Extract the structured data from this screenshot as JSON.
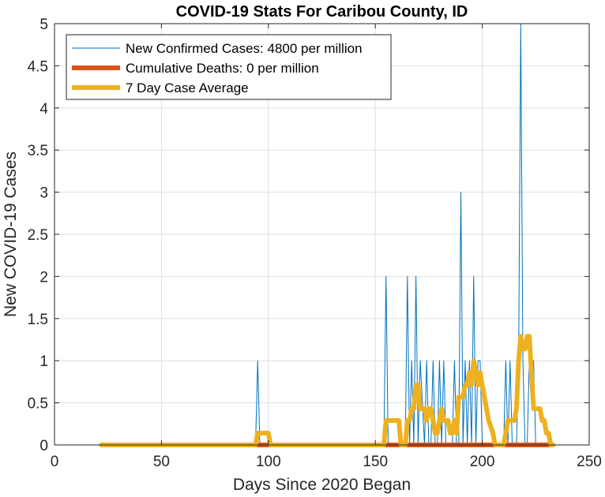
{
  "chart_data": {
    "type": "line",
    "title": "COVID-19 Stats For Caribou County, ID",
    "xlabel": "Days Since 2020 Began",
    "ylabel": "New COVID-19 Cases",
    "xlim": [
      0,
      250
    ],
    "ylim": [
      0,
      5
    ],
    "xticks": [
      0,
      50,
      100,
      150,
      200,
      250
    ],
    "xtick_labels": [
      "0",
      "50",
      "100",
      "150",
      "200",
      "250"
    ],
    "yticks": [
      0,
      0.5,
      1,
      1.5,
      2,
      2.5,
      3,
      3.5,
      4,
      4.5,
      5
    ],
    "ytick_labels": [
      "0",
      "0.5",
      "1",
      "1.5",
      "2",
      "2.5",
      "3",
      "3.5",
      "4",
      "4.5",
      "5"
    ],
    "grid": true,
    "legend_position": "top-left",
    "series": [
      {
        "name": "New Confirmed Cases: 4800 per million",
        "color": "#0072BD",
        "line": "thin",
        "x": [
          22,
          94,
          95,
          96,
          154,
          155,
          156,
          164,
          165,
          166,
          167,
          168,
          169,
          170,
          171,
          173,
          174,
          175,
          176,
          177,
          178,
          179,
          180,
          181,
          182,
          183,
          184,
          186,
          187,
          188,
          189,
          190,
          191,
          192,
          193,
          194,
          195,
          196,
          197,
          198,
          199,
          200,
          201,
          210,
          211,
          212,
          213,
          214,
          216,
          217,
          218,
          219,
          220,
          221,
          222,
          223,
          224,
          225,
          226,
          233
        ],
        "y": [
          0,
          0,
          1,
          0,
          0,
          2,
          0,
          0,
          2,
          0,
          1,
          0,
          2,
          0,
          1,
          0,
          1,
          0,
          0,
          1,
          0,
          0,
          1,
          0,
          1,
          0,
          0,
          0,
          1,
          0,
          0,
          3,
          0,
          1,
          0,
          1,
          0,
          2,
          0,
          1,
          1,
          0,
          0,
          0,
          1,
          0,
          1,
          0,
          0,
          1,
          5,
          1,
          0,
          0,
          1,
          1,
          1,
          0,
          0,
          0
        ]
      },
      {
        "name": "Cumulative Deaths: 0 per million",
        "color": "#D95319",
        "line": "thick",
        "x": [
          22,
          233
        ],
        "y": [
          0,
          0
        ]
      },
      {
        "name": "7 Day Case Average",
        "color": "#EDB120",
        "line": "thick",
        "x": [
          22,
          94,
          95,
          96,
          100,
          101,
          154,
          155,
          156,
          161,
          162,
          164,
          165,
          166,
          167,
          168,
          169,
          170,
          171,
          172,
          173,
          174,
          175,
          176,
          177,
          178,
          179,
          180,
          181,
          182,
          183,
          184,
          185,
          186,
          187,
          188,
          189,
          190,
          191,
          192,
          193,
          194,
          195,
          196,
          197,
          198,
          199,
          200,
          201,
          202,
          203,
          205,
          206,
          207,
          208,
          210,
          211,
          212,
          213,
          214,
          215,
          216,
          217,
          218,
          219,
          220,
          221,
          222,
          223,
          224,
          225,
          226,
          227,
          228,
          229,
          230,
          231,
          232,
          233
        ],
        "y": [
          0,
          0,
          0.14,
          0.14,
          0.14,
          0,
          0,
          0.29,
          0.29,
          0.29,
          0,
          0,
          0.29,
          0.29,
          0.43,
          0.43,
          0.71,
          0.71,
          0.43,
          0.43,
          0.43,
          0.29,
          0.43,
          0.43,
          0.29,
          0.14,
          0.14,
          0.29,
          0.43,
          0.29,
          0.29,
          0.29,
          0.14,
          0.14,
          0.29,
          0.14,
          0.57,
          0.57,
          0.57,
          0.71,
          0.71,
          0.86,
          0.71,
          1.0,
          0.86,
          0.71,
          0.86,
          0.71,
          0.57,
          0.43,
          0.29,
          0.14,
          0,
          0,
          0,
          0,
          0.14,
          0.29,
          0.29,
          0.29,
          0.29,
          0.43,
          1.0,
          1.29,
          1.14,
          1.14,
          1.29,
          1.29,
          0.86,
          0.43,
          0.43,
          0.43,
          0.43,
          0.29,
          0.29,
          0.14,
          0.14,
          0,
          0
        ]
      }
    ]
  }
}
